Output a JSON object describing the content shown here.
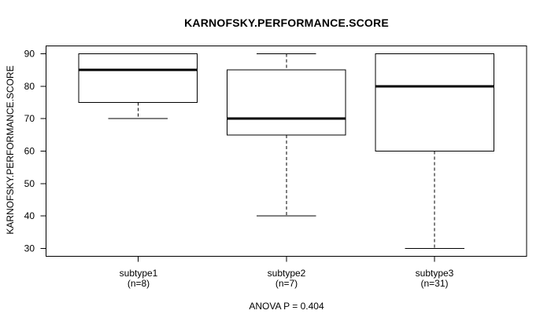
{
  "chart_data": {
    "type": "boxplot",
    "title": "KARNOFSKY.PERFORMANCE.SCORE",
    "ylabel": "KARNOFSKY.PERFORMANCE.SCORE",
    "xlabel": "",
    "annotation": "ANOVA P = 0.404",
    "grid": false,
    "legend": "none",
    "yticks": [
      30,
      40,
      50,
      60,
      70,
      80,
      90
    ],
    "ylim": [
      27.6,
      92.4
    ],
    "categories": [
      "subtype1",
      "subtype2",
      "subtype3"
    ],
    "category_sublabels": [
      "(n=8)",
      "(n=7)",
      "(n=31)"
    ],
    "series": [
      {
        "name": "subtype1",
        "n": 8,
        "whisker_low": 70,
        "q1": 75,
        "median": 85,
        "q3": 90,
        "whisker_high": 90
      },
      {
        "name": "subtype2",
        "n": 7,
        "whisker_low": 40,
        "q1": 65,
        "median": 70,
        "q3": 85,
        "whisker_high": 90
      },
      {
        "name": "subtype3",
        "n": 31,
        "whisker_low": 30,
        "q1": 60,
        "median": 80,
        "q3": 90,
        "whisker_high": 90
      }
    ],
    "colors": {
      "line": "#000000",
      "box_fill": "#ffffff",
      "background": "#ffffff"
    }
  }
}
